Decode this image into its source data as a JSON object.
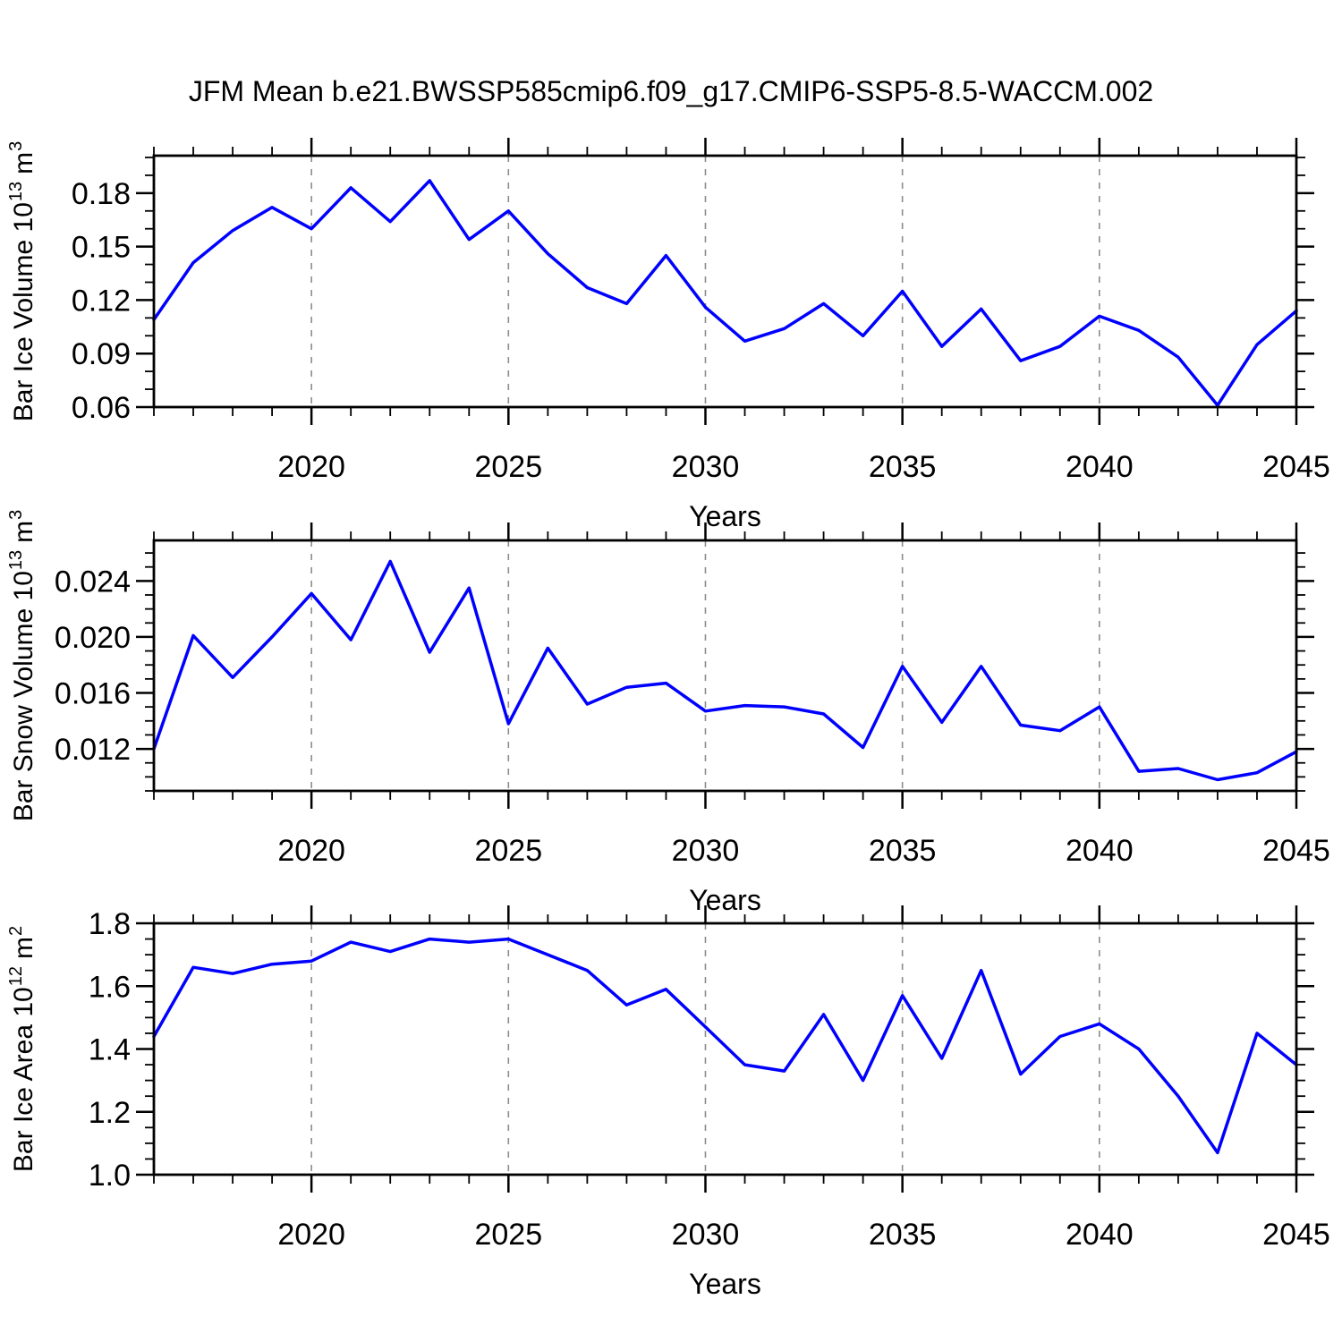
{
  "title": "JFM Mean b.e21.BWSSP585cmip6.f09_g17.CMIP6-SSP5-8.5-WACCM.002",
  "colors": {
    "line": "#0000ff",
    "axis": "#000000",
    "grid": "#8c8c8c",
    "text": "#000000",
    "background": "#ffffff"
  },
  "chart_data": [
    {
      "type": "line",
      "series_name": "Bar Ice Volume",
      "ylabel": {
        "base": "Bar Ice Volume 10",
        "exp": "13",
        "unit": "m",
        "unit_exp": "3"
      },
      "xlabel": "Years",
      "x": [
        2016,
        2017,
        2018,
        2019,
        2020,
        2021,
        2022,
        2023,
        2024,
        2025,
        2026,
        2027,
        2028,
        2029,
        2030,
        2031,
        2032,
        2033,
        2034,
        2035,
        2036,
        2037,
        2038,
        2039,
        2040,
        2041,
        2042,
        2043,
        2044,
        2045
      ],
      "values": [
        0.109,
        0.141,
        0.159,
        0.172,
        0.16,
        0.183,
        0.164,
        0.187,
        0.154,
        0.17,
        0.146,
        0.127,
        0.118,
        0.145,
        0.116,
        0.097,
        0.104,
        0.118,
        0.1,
        0.125,
        0.094,
        0.115,
        0.086,
        0.094,
        0.111,
        0.103,
        0.088,
        0.061,
        0.095,
        0.114
      ],
      "xlim": [
        2016,
        2045
      ],
      "ylim": [
        0.06,
        0.201
      ],
      "xticks": [
        2020,
        2025,
        2030,
        2035,
        2040,
        2045
      ],
      "xtick_labels": [
        "2020",
        "2025",
        "2030",
        "2035",
        "2040",
        "2045"
      ],
      "x_minor_step": 1,
      "yticks": [
        0.06,
        0.09,
        0.12,
        0.15,
        0.18
      ],
      "ytick_labels": [
        "0.06",
        "0.09",
        "0.12",
        "0.15",
        "0.18"
      ],
      "y_minor_step": 0.01,
      "grid_x": [
        2020,
        2025,
        2030,
        2035,
        2040
      ],
      "grid_style": "vertical-dashed",
      "legend": "none"
    },
    {
      "type": "line",
      "series_name": "Bar Snow Volume",
      "ylabel": {
        "base": "Bar Snow Volume 10",
        "exp": "13",
        "unit": "m",
        "unit_exp": "3"
      },
      "xlabel": "Years",
      "x": [
        2016,
        2017,
        2018,
        2019,
        2020,
        2021,
        2022,
        2023,
        2024,
        2025,
        2026,
        2027,
        2028,
        2029,
        2030,
        2031,
        2032,
        2033,
        2034,
        2035,
        2036,
        2037,
        2038,
        2039,
        2040,
        2041,
        2042,
        2043,
        2044,
        2045
      ],
      "values": [
        0.012,
        0.0201,
        0.0171,
        0.02,
        0.0231,
        0.0198,
        0.0254,
        0.0189,
        0.0235,
        0.0138,
        0.0192,
        0.0152,
        0.0164,
        0.0167,
        0.0147,
        0.0151,
        0.015,
        0.0145,
        0.0121,
        0.0179,
        0.0139,
        0.0179,
        0.0137,
        0.0133,
        0.015,
        0.0104,
        0.0106,
        0.0098,
        0.0103,
        0.0118
      ],
      "xlim": [
        2016,
        2045
      ],
      "ylim": [
        0.009,
        0.0269
      ],
      "xticks": [
        2020,
        2025,
        2030,
        2035,
        2040,
        2045
      ],
      "xtick_labels": [
        "2020",
        "2025",
        "2030",
        "2035",
        "2040",
        "2045"
      ],
      "x_minor_step": 1,
      "yticks": [
        0.012,
        0.016,
        0.02,
        0.024
      ],
      "ytick_labels": [
        "0.012",
        "0.016",
        "0.020",
        "0.024"
      ],
      "y_minor_step": 0.001,
      "grid_x": [
        2020,
        2025,
        2030,
        2035,
        2040
      ],
      "grid_style": "vertical-dashed",
      "legend": "none"
    },
    {
      "type": "line",
      "series_name": "Bar Ice Area",
      "ylabel": {
        "base": "Bar Ice Area 10",
        "exp": "12",
        "unit": "m",
        "unit_exp": "2"
      },
      "xlabel": "Years",
      "x": [
        2016,
        2017,
        2018,
        2019,
        2020,
        2021,
        2022,
        2023,
        2024,
        2025,
        2026,
        2027,
        2028,
        2029,
        2030,
        2031,
        2032,
        2033,
        2034,
        2035,
        2036,
        2037,
        2038,
        2039,
        2040,
        2041,
        2042,
        2043,
        2044,
        2045
      ],
      "values": [
        1.44,
        1.66,
        1.64,
        1.67,
        1.68,
        1.74,
        1.71,
        1.75,
        1.74,
        1.75,
        1.7,
        1.65,
        1.54,
        1.59,
        1.47,
        1.35,
        1.33,
        1.51,
        1.3,
        1.57,
        1.37,
        1.65,
        1.32,
        1.44,
        1.48,
        1.4,
        1.25,
        1.07,
        1.45,
        1.35
      ],
      "xlim": [
        2016,
        2045
      ],
      "ylim": [
        1.0,
        1.8
      ],
      "xticks": [
        2020,
        2025,
        2030,
        2035,
        2040,
        2045
      ],
      "xtick_labels": [
        "2020",
        "2025",
        "2030",
        "2035",
        "2040",
        "2045"
      ],
      "x_minor_step": 1,
      "yticks": [
        1.0,
        1.2,
        1.4,
        1.6,
        1.8
      ],
      "ytick_labels": [
        "1.0",
        "1.2",
        "1.4",
        "1.6",
        "1.8"
      ],
      "y_minor_step": 0.05,
      "grid_x": [
        2020,
        2025,
        2030,
        2035,
        2040
      ],
      "grid_style": "vertical-dashed",
      "legend": "none"
    }
  ]
}
